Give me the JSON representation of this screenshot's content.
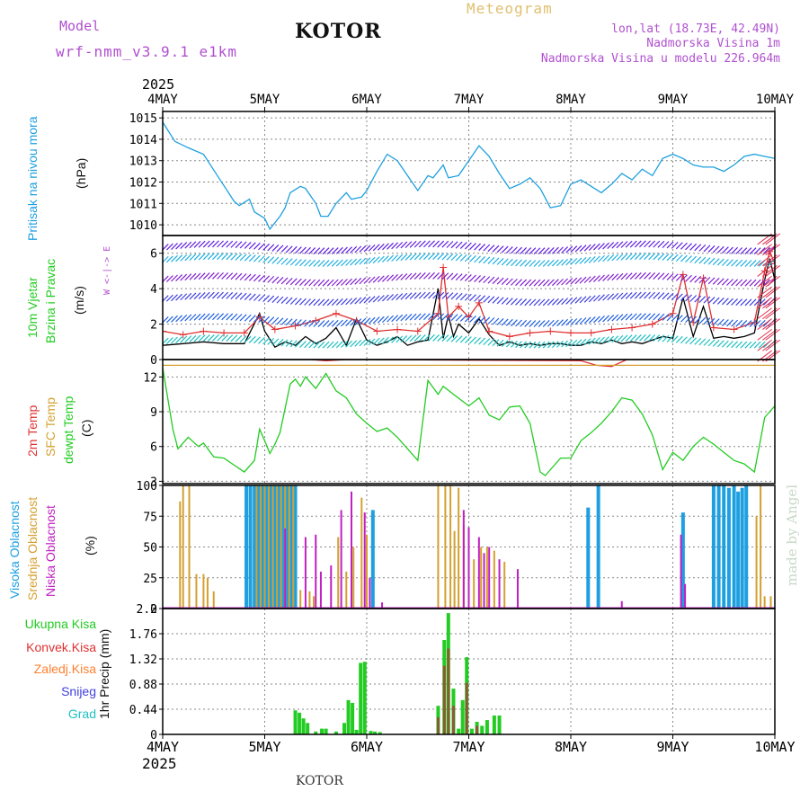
{
  "header": {
    "model_label": "Model",
    "model_name": "wrf-nmm_v3.9.1 e1km",
    "station": "KOTOR",
    "product": "Meteogram",
    "lonlat": "lon,lat (18.73E, 42.49N)",
    "altitude": "Nadmorska Visina 1m",
    "model_altitude": "Nadmorska Visina u modelu 226.964m",
    "footer_station": "KOTOR",
    "watermark": "made by Angel"
  },
  "colors": {
    "pressure": "#1ea0e0",
    "wind_speed": "#000000",
    "wind_gust": "#e03030",
    "temp_2m": "#e03030",
    "temp_sfc": "#d4a030",
    "dewpoint": "#22cc22",
    "cloud_high": "#1ea0e0",
    "cloud_mid": "#d4a030",
    "cloud_low": "#c020c0",
    "precip_total": "#22cc22",
    "precip_conv": "#e03030",
    "precip_frozen": "#ff8030",
    "precip_snow": "#4040e0",
    "precip_hail": "#20c0c0"
  },
  "chart_data": [
    {
      "type": "line",
      "panel": "pressure",
      "ylabel_lines": [
        "Pritisak na nivou mora",
        "(hPa)"
      ],
      "ylim": [
        1009.5,
        1015.3
      ],
      "yticks": [
        "1010",
        "1011",
        "1012",
        "1013",
        "1014",
        "1015"
      ],
      "xlim": [
        0,
        6
      ],
      "xticks_top": [
        "4MAY",
        "5MAY",
        "6MAY",
        "7MAY",
        "8MAY",
        "9MAY",
        "10MAY"
      ],
      "year_top": "2025",
      "series": [
        {
          "values_x": [
            0,
            0.12,
            0.25,
            0.4,
            0.55,
            0.7,
            0.75,
            0.85,
            0.9,
            1.0,
            1.05,
            1.15,
            1.2,
            1.25,
            1.35,
            1.4,
            1.5,
            1.55,
            1.62,
            1.7,
            1.8,
            1.85,
            1.95,
            2.0,
            2.1,
            2.2,
            2.3,
            2.4,
            2.5,
            2.6,
            2.65,
            2.75,
            2.8,
            2.9,
            3.0,
            3.1,
            3.2,
            3.3,
            3.4,
            3.5,
            3.6,
            3.7,
            3.8,
            3.9,
            4.0,
            4.1,
            4.2,
            4.3,
            4.4,
            4.5,
            4.6,
            4.7,
            4.8,
            4.9,
            5.0,
            5.1,
            5.2,
            5.3,
            5.4,
            5.5,
            5.6,
            5.7,
            5.8,
            5.9,
            6.0
          ],
          "values_y": [
            1014.8,
            1013.9,
            1013.6,
            1013.3,
            1012.2,
            1011.1,
            1010.9,
            1011.2,
            1010.6,
            1010.3,
            1009.8,
            1010.4,
            1010.8,
            1011.5,
            1011.8,
            1011.7,
            1011.0,
            1010.4,
            1010.4,
            1011.0,
            1011.5,
            1011.2,
            1011.3,
            1011.6,
            1012.5,
            1013.3,
            1013.0,
            1012.3,
            1011.6,
            1012.3,
            1012.2,
            1012.8,
            1012.2,
            1012.3,
            1013.0,
            1013.7,
            1013.2,
            1012.4,
            1011.7,
            1011.9,
            1012.2,
            1011.7,
            1010.8,
            1010.9,
            1011.9,
            1012.1,
            1011.8,
            1011.5,
            1011.9,
            1012.4,
            1012.1,
            1012.6,
            1012.3,
            1013.1,
            1013.3,
            1013.1,
            1012.8,
            1012.7,
            1012.7,
            1012.5,
            1012.8,
            1013.2,
            1013.3,
            1013.2,
            1013.1
          ]
        }
      ]
    },
    {
      "type": "line",
      "panel": "wind",
      "ylabel_lines": [
        "10m Vjetar",
        "Brzina i Pravac",
        "(m/s)"
      ],
      "compass": "W <-|-> E",
      "ylim": [
        0,
        7
      ],
      "yticks": [
        "0",
        "2",
        "4",
        "6"
      ],
      "xlim": [
        0,
        6
      ],
      "series": [
        {
          "name": "speed",
          "values_x": [
            0,
            0.2,
            0.4,
            0.6,
            0.8,
            0.95,
            1.0,
            1.1,
            1.2,
            1.3,
            1.4,
            1.5,
            1.6,
            1.7,
            1.8,
            1.9,
            2.0,
            2.1,
            2.2,
            2.3,
            2.4,
            2.5,
            2.6,
            2.7,
            2.75,
            2.8,
            2.85,
            2.9,
            3.0,
            3.1,
            3.2,
            3.3,
            3.35,
            3.4,
            3.5,
            3.6,
            3.7,
            3.8,
            3.9,
            4.0,
            4.1,
            4.2,
            4.3,
            4.4,
            4.5,
            4.6,
            4.7,
            4.8,
            4.9,
            5.0,
            5.1,
            5.2,
            5.3,
            5.4,
            5.5,
            5.6,
            5.7,
            5.8,
            5.9,
            5.95,
            6.0
          ],
          "values_y": [
            0.8,
            0.9,
            1.0,
            0.9,
            0.9,
            2.6,
            1.6,
            0.7,
            1.0,
            0.8,
            1.3,
            0.9,
            1.2,
            1.8,
            0.8,
            2.3,
            1.1,
            0.8,
            1.0,
            1.3,
            0.8,
            1.0,
            1.1,
            4.0,
            1.2,
            2.5,
            1.3,
            2.0,
            1.5,
            2.3,
            1.4,
            0.8,
            0.9,
            1.0,
            0.8,
            0.9,
            0.8,
            0.9,
            0.9,
            0.8,
            0.8,
            1.0,
            0.9,
            1.1,
            0.9,
            1.0,
            0.9,
            1.1,
            1.3,
            1.2,
            3.5,
            1.3,
            3.0,
            1.2,
            1.3,
            1.2,
            1.3,
            1.5,
            4.5,
            5.7,
            4.5
          ]
        },
        {
          "name": "gust",
          "values_x": [
            0,
            0.2,
            0.4,
            0.6,
            0.8,
            0.95,
            1.1,
            1.3,
            1.5,
            1.7,
            1.9,
            2.1,
            2.3,
            2.5,
            2.7,
            2.75,
            2.8,
            2.9,
            3.0,
            3.1,
            3.2,
            3.4,
            3.6,
            3.8,
            4.0,
            4.2,
            4.4,
            4.6,
            4.8,
            5.0,
            5.1,
            5.2,
            5.3,
            5.4,
            5.6,
            5.8,
            5.9,
            5.95,
            6.0
          ],
          "values_y": [
            1.6,
            1.4,
            1.6,
            1.5,
            1.5,
            2.4,
            1.7,
            1.9,
            2.2,
            2.6,
            2.2,
            1.6,
            1.7,
            1.6,
            2.6,
            5.2,
            2.4,
            3.0,
            2.4,
            3.2,
            1.6,
            1.3,
            1.5,
            1.6,
            1.5,
            1.5,
            1.7,
            1.8,
            2.0,
            2.6,
            4.8,
            2.1,
            4.6,
            1.8,
            1.7,
            2.1,
            5.0,
            6.1,
            5.4
          ]
        }
      ]
    },
    {
      "type": "line",
      "panel": "temperature",
      "ylabel_lines": [
        "2m Temp",
        "SFC Temp",
        "dewpt Temp",
        "(C)"
      ],
      "ylim": [
        2.8,
        13.5
      ],
      "yticks": [
        "3",
        "6",
        "9",
        "12"
      ],
      "xlim": [
        0,
        6
      ],
      "series": [
        {
          "name": "dewpt",
          "values_x": [
            0,
            0.1,
            0.15,
            0.25,
            0.35,
            0.4,
            0.5,
            0.6,
            0.7,
            0.8,
            0.9,
            0.95,
            1.0,
            1.05,
            1.1,
            1.15,
            1.25,
            1.3,
            1.35,
            1.4,
            1.5,
            1.6,
            1.7,
            1.8,
            1.9,
            2.0,
            2.1,
            2.2,
            2.3,
            2.4,
            2.5,
            2.6,
            2.7,
            2.75,
            2.85,
            3.0,
            3.1,
            3.2,
            3.3,
            3.4,
            3.5,
            3.6,
            3.7,
            3.75,
            3.8,
            3.9,
            4.0,
            4.1,
            4.2,
            4.3,
            4.4,
            4.5,
            4.6,
            4.7,
            4.8,
            4.9,
            5.0,
            5.1,
            5.2,
            5.3,
            5.4,
            5.5,
            5.6,
            5.7,
            5.8,
            5.9,
            5.95,
            6.0
          ],
          "values_y": [
            12.8,
            7.5,
            5.8,
            6.8,
            6.0,
            6.3,
            5.1,
            5.0,
            4.4,
            3.8,
            4.8,
            7.5,
            6.5,
            5.4,
            6.2,
            7.2,
            11.4,
            11.8,
            11.2,
            12.0,
            11.0,
            12.3,
            10.8,
            10.2,
            8.8,
            8.0,
            7.3,
            7.6,
            6.8,
            5.8,
            4.8,
            11.7,
            10.5,
            11.2,
            10.5,
            9.5,
            10.2,
            8.7,
            8.3,
            9.4,
            9.5,
            8.0,
            3.8,
            3.5,
            4.0,
            5.0,
            5.0,
            6.5,
            7.2,
            8.0,
            9.0,
            10.2,
            10.0,
            8.8,
            7.0,
            4.0,
            5.5,
            4.8,
            6.0,
            6.8,
            6.2,
            5.5,
            4.8,
            4.5,
            3.8,
            8.5,
            9.0,
            9.5
          ]
        },
        {
          "name": "t2m",
          "values_x": [
            1.45,
            1.6,
            1.8,
            2.0,
            4.1,
            4.25,
            4.4,
            4.55
          ],
          "values_y": [
            13.5,
            13.4,
            13.5,
            13.5,
            13.4,
            13.0,
            12.9,
            13.5
          ]
        },
        {
          "name": "tsfc",
          "values_x": [
            0,
            6
          ],
          "values_y": [
            13.0,
            13.0
          ]
        }
      ]
    },
    {
      "type": "bar",
      "panel": "clouds",
      "ylabel_lines": [
        "Visoka Oblacnost",
        "Srednja Oblacnost",
        "Niska Oblacnost",
        "(%)"
      ],
      "ylim": [
        0,
        100
      ],
      "yticks": [
        "0",
        "25",
        "50",
        "75",
        "100"
      ],
      "xlim": [
        0,
        6
      ],
      "series": [
        {
          "name": "high",
          "x": [
            0.82,
            0.86,
            0.9,
            0.94,
            0.98,
            1.02,
            1.06,
            1.1,
            1.14,
            1.18,
            1.22,
            1.26,
            1.3,
            2.06,
            4.17,
            4.27,
            5.1,
            5.4,
            5.45,
            5.5,
            5.55,
            5.6,
            5.64,
            5.68,
            5.72
          ],
          "values": [
            100,
            100,
            100,
            100,
            100,
            100,
            100,
            100,
            100,
            100,
            100,
            100,
            100,
            80,
            82,
            100,
            78,
            100,
            100,
            100,
            98,
            100,
            95,
            98,
            100
          ]
        },
        {
          "name": "mid",
          "x": [
            0.17,
            0.2,
            0.26,
            0.33,
            0.4,
            0.44,
            0.5,
            0.92,
            0.96,
            1.0,
            1.04,
            1.08,
            1.12,
            1.16,
            1.2,
            1.24,
            1.28,
            1.35,
            1.44,
            1.48,
            1.72,
            1.8,
            1.87,
            1.95,
            2.0,
            2.7,
            2.77,
            2.82,
            2.86,
            2.9,
            2.95,
            3.0,
            3.05,
            3.12,
            3.18,
            3.25,
            3.35,
            5.82,
            5.86,
            5.9,
            5.96
          ],
          "values": [
            87,
            100,
            100,
            28,
            28,
            25,
            14,
            100,
            100,
            100,
            100,
            100,
            100,
            100,
            100,
            100,
            100,
            15,
            14,
            10,
            58,
            30,
            50,
            90,
            60,
            100,
            100,
            100,
            63,
            98,
            68,
            50,
            40,
            50,
            50,
            47,
            38,
            75,
            100,
            10,
            10
          ]
        },
        {
          "name": "low",
          "x": [
            1.2,
            1.4,
            1.5,
            1.55,
            1.65,
            1.75,
            1.85,
            1.98,
            2.03,
            2.15,
            2.95,
            3.0,
            3.1,
            3.15,
            3.2,
            3.3,
            3.48,
            4.5,
            5.08,
            5.12
          ],
          "values": [
            65,
            58,
            60,
            30,
            35,
            80,
            95,
            78,
            25,
            5,
            80,
            66,
            58,
            45,
            50,
            40,
            32,
            6,
            60,
            20
          ]
        }
      ]
    },
    {
      "type": "bar",
      "panel": "precip",
      "ylabel_lines": [
        "1hr Precip (mm)"
      ],
      "legend": [
        "Ukupna Kisa",
        "Konvek.Kisa",
        "Zaledj.Kisa",
        "Snijeg",
        "Grad"
      ],
      "ylim": [
        0,
        2.2
      ],
      "yticks": [
        "0",
        "0.44",
        "0.88",
        "1.32",
        "1.76",
        "2.2"
      ],
      "xlim": [
        0,
        6
      ],
      "xticks_bottom": [
        "4MAY",
        "5MAY",
        "6MAY",
        "7MAY",
        "8MAY",
        "9MAY",
        "10MAY"
      ],
      "year_bottom": "2025",
      "series": [
        {
          "name": "Ukupna Kisa",
          "x": [
            1.3,
            1.34,
            1.38,
            1.42,
            1.5,
            1.56,
            1.6,
            1.7,
            1.78,
            1.82,
            1.86,
            1.9,
            1.94,
            1.98,
            2.04,
            2.08,
            2.13,
            2.7,
            2.76,
            2.8,
            2.85,
            2.9,
            2.94,
            2.98,
            3.03,
            3.08,
            3.13,
            3.18,
            3.25,
            3.3
          ],
          "values": [
            0.42,
            0.38,
            0.28,
            0.2,
            0.05,
            0.1,
            0.1,
            0.05,
            0.2,
            0.6,
            0.55,
            0.08,
            1.25,
            1.27,
            0.06,
            0.05,
            0.04,
            0.5,
            1.65,
            2.12,
            0.8,
            0.1,
            0.6,
            1.35,
            0.1,
            0.22,
            0.15,
            0.25,
            0.33,
            0.33
          ]
        },
        {
          "name": "Konvek.Kisa",
          "x": [
            2.7,
            2.76,
            2.8,
            2.85,
            2.98,
            3.08
          ],
          "values": [
            0.3,
            1.2,
            1.5,
            0.5,
            0.9,
            0.15
          ]
        }
      ]
    }
  ]
}
